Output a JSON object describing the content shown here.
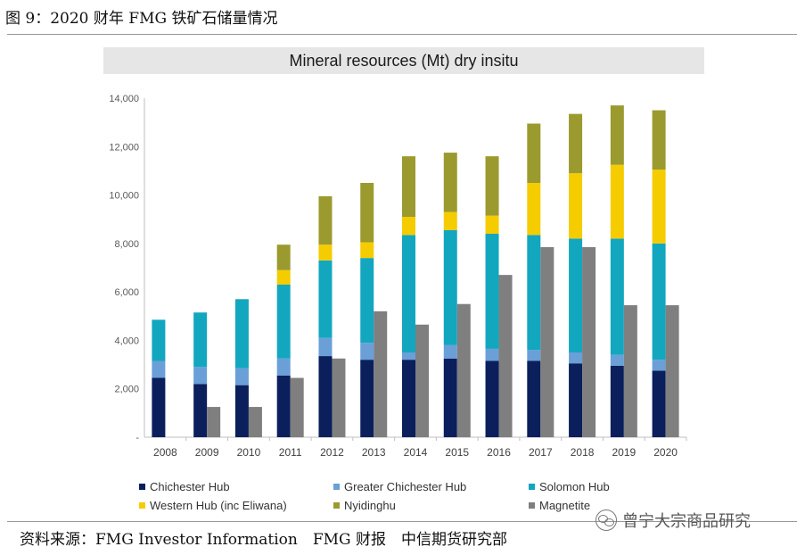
{
  "figure": {
    "title": "图 9：2020 财年 FMG 铁矿石储量情况",
    "source": "资料来源：FMG Investor Information　FMG 财报　中信期货研究部",
    "watermark": "曾宁大宗商品研究"
  },
  "chart_data": {
    "type": "bar",
    "title": "Mineral resources (Mt) dry insitu",
    "xlabel": "",
    "ylabel": "",
    "ylim": [
      0,
      14000
    ],
    "yticks": [
      0,
      2000,
      4000,
      6000,
      8000,
      10000,
      12000,
      14000
    ],
    "ytick_labels": [
      "-",
      "2,000",
      "4,000",
      "6,000",
      "8,000",
      "10,000",
      "12,000",
      "14,000"
    ],
    "grid": false,
    "legend_position": "bottom",
    "categories": [
      "2008",
      "2009",
      "2010",
      "2011",
      "2012",
      "2013",
      "2014",
      "2015",
      "2016",
      "2017",
      "2018",
      "2019",
      "2020"
    ],
    "stacked_series": [
      {
        "name": "Chichester Hub",
        "color": "#0a1f5c",
        "values": [
          2450,
          2200,
          2150,
          2550,
          3350,
          3200,
          3200,
          3250,
          3150,
          3150,
          3050,
          2950,
          2750
        ]
      },
      {
        "name": "Greater Chichester Hub",
        "color": "#6a9fd8",
        "values": [
          700,
          700,
          700,
          700,
          750,
          700,
          300,
          550,
          500,
          450,
          450,
          450,
          450
        ]
      },
      {
        "name": "Solomon Hub",
        "color": "#12a7bf",
        "values": [
          1700,
          2250,
          2850,
          3050,
          3200,
          3500,
          4850,
          4750,
          4750,
          4750,
          4700,
          4800,
          4800
        ]
      },
      {
        "name": "Western Hub (inc Eliwana)",
        "color": "#f5cc00",
        "values": [
          0,
          0,
          0,
          600,
          650,
          650,
          750,
          750,
          750,
          2150,
          2700,
          3050,
          3050
        ]
      },
      {
        "name": "Nyidinghu",
        "color": "#9b9a2f",
        "values": [
          0,
          0,
          0,
          1050,
          2000,
          2450,
          2500,
          2450,
          2450,
          2450,
          2450,
          2450,
          2450
        ]
      }
    ],
    "side_series": {
      "name": "Magnetite",
      "color": "#7f7f7f",
      "values": [
        0,
        1250,
        1250,
        2450,
        3250,
        5200,
        4650,
        5500,
        6700,
        7850,
        7850,
        5450,
        5450
      ]
    }
  }
}
